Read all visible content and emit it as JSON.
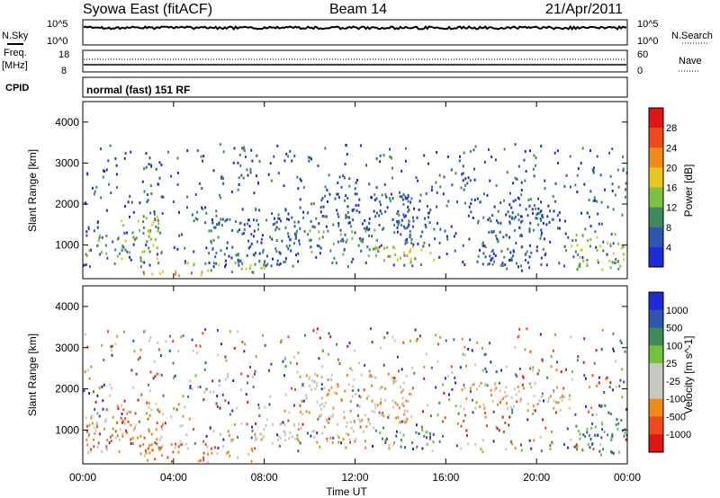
{
  "header": {
    "station": "Syowa East (fitACF)",
    "beam": "Beam 14",
    "date": "21/Apr/2011"
  },
  "noise_panel": {
    "left_label": "N.Sky",
    "right_label": "N.Search",
    "left_ticks": [
      "10^5",
      "10^0"
    ],
    "right_ticks": [
      "10^5",
      "10^0"
    ]
  },
  "freq_panel": {
    "left_label_line1": "Freq.",
    "left_label_line2": "[MHz]",
    "right_label": "Nave",
    "left_ticks": [
      "18",
      "8"
    ],
    "right_ticks": [
      "60",
      "0"
    ]
  },
  "cpid": {
    "label": "CPID",
    "mode": "normal (fast) 151 RF"
  },
  "x_axis": {
    "label": "Time UT",
    "ticks": [
      "00:00",
      "04:00",
      "08:00",
      "12:00",
      "16:00",
      "20:00",
      "00:00"
    ]
  },
  "colors": {
    "power": [
      "#1d2bd8",
      "#2c56b0",
      "#3d8a5a",
      "#7fc13d",
      "#e8c51f",
      "#f08a1a",
      "#f04a1b",
      "#e01515"
    ],
    "velocity": [
      "#e01515",
      "#f04a1b",
      "#f08a1a",
      "#c8c8c0",
      "#c8c8c0",
      "#72c23c",
      "#3d8a5a",
      "#2c56b0",
      "#1d2bd8"
    ]
  },
  "chart_data": [
    {
      "type": "heatmap",
      "title": "",
      "ylabel": "Slant Range [km]",
      "xlabel": "",
      "xlim": [
        0,
        24
      ],
      "ylim": [
        180,
        4500
      ],
      "yticks": [
        "4000",
        "3000",
        "2000",
        "1000"
      ],
      "colorbar": {
        "label": "Power [dB]",
        "ticks": [
          "28",
          "24",
          "20",
          "16",
          "12",
          "8",
          "4"
        ],
        "range": [
          0,
          30
        ]
      },
      "regions": [
        {
          "t0": 0.1,
          "t1": 1.2,
          "r0": 700,
          "r1": 1300,
          "level": 2
        },
        {
          "t0": 1.5,
          "t1": 3.5,
          "r0": 600,
          "r1": 1800,
          "level": 3
        },
        {
          "t0": 2.3,
          "t1": 5.5,
          "r0": 280,
          "r1": 450,
          "level": 5
        },
        {
          "t0": 4.5,
          "t1": 8.5,
          "r0": 350,
          "r1": 600,
          "level": 3
        },
        {
          "t0": 5.5,
          "t1": 9.5,
          "r0": 500,
          "r1": 1700,
          "level": 1
        },
        {
          "t0": 9.0,
          "t1": 13.0,
          "r0": 800,
          "r1": 1500,
          "level": 2
        },
        {
          "t0": 10.0,
          "t1": 14.5,
          "r0": 1400,
          "r1": 2300,
          "level": 1
        },
        {
          "t0": 12.5,
          "t1": 15.5,
          "r0": 600,
          "r1": 1000,
          "level": 4
        },
        {
          "t0": 13.5,
          "t1": 15.5,
          "r0": 1000,
          "r1": 1900,
          "level": 1
        },
        {
          "t0": 17.0,
          "t1": 21.0,
          "r0": 1500,
          "r1": 2200,
          "level": 1
        },
        {
          "t0": 17.5,
          "t1": 20.5,
          "r0": 400,
          "r1": 1400,
          "level": 1
        },
        {
          "t0": 21.5,
          "t1": 23.9,
          "r0": 400,
          "r1": 1300,
          "level": 3
        }
      ]
    },
    {
      "type": "heatmap",
      "title": "",
      "ylabel": "Slant Range [km]",
      "xlabel": "Time UT",
      "xlim": [
        0,
        24
      ],
      "ylim": [
        180,
        4500
      ],
      "yticks": [
        "4000",
        "3000",
        "2000",
        "1000"
      ],
      "colorbar": {
        "label": "Velocity [m s^-1]",
        "ticks": [
          "1000",
          "500",
          "100",
          "25",
          "-25",
          "-100",
          "-500",
          "-1000"
        ],
        "range": [
          -1200,
          1200
        ]
      },
      "regions": [
        {
          "t0": 0.1,
          "t1": 1.5,
          "r0": 400,
          "r1": 1400,
          "level": -1
        },
        {
          "t0": 1.5,
          "t1": 3.5,
          "r0": 500,
          "r1": 1700,
          "level": -1
        },
        {
          "t0": 2.5,
          "t1": 7.5,
          "r0": 250,
          "r1": 700,
          "level": -1
        },
        {
          "t0": 6.0,
          "t1": 12.0,
          "r0": 700,
          "r1": 1200,
          "level": 0
        },
        {
          "t0": 9.5,
          "t1": 14.5,
          "r0": 1200,
          "r1": 2400,
          "level": 0
        },
        {
          "t0": 13.0,
          "t1": 15.5,
          "r0": 600,
          "r1": 1000,
          "level": 1
        },
        {
          "t0": 17.0,
          "t1": 21.5,
          "r0": 1500,
          "r1": 2200,
          "level": 0
        },
        {
          "t0": 21.5,
          "t1": 23.9,
          "r0": 400,
          "r1": 1300,
          "level": 1
        }
      ]
    }
  ]
}
